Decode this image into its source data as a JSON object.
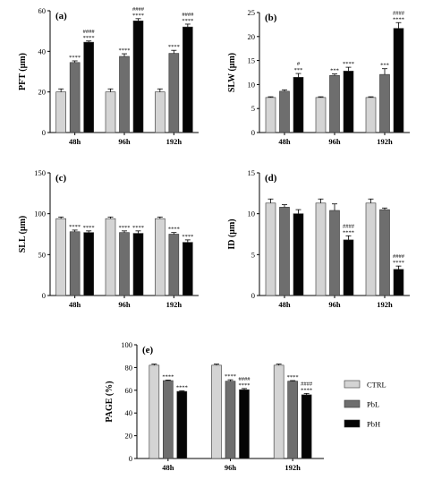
{
  "colors": {
    "CTRL": "#d4d4d4",
    "PbL": "#6e6e6e",
    "PbH": "#050505"
  },
  "legend": {
    "placement": "right",
    "entries": [
      {
        "name": "CTRL",
        "color": "#d4d4d4"
      },
      {
        "name": "PbL",
        "color": "#6e6e6e"
      },
      {
        "name": "PbH",
        "color": "#050505"
      }
    ]
  },
  "chart_data": [
    {
      "type": "bar",
      "panel": "(a)",
      "ylabel": "PFT (μm)",
      "categories": [
        "48h",
        "96h",
        "192h"
      ],
      "ylim": [
        0,
        60
      ],
      "yticks": [
        0,
        20,
        40,
        60
      ],
      "series": [
        {
          "name": "CTRL",
          "values": [
            20,
            20,
            20
          ],
          "errors": [
            1.5,
            1.5,
            1.5
          ]
        },
        {
          "name": "PbL",
          "values": [
            34.5,
            37.5,
            39
          ],
          "errors": [
            0.8,
            1.3,
            1.5
          ]
        },
        {
          "name": "PbH",
          "values": [
            44.5,
            55,
            52
          ],
          "errors": [
            0.6,
            1.1,
            1.4
          ]
        }
      ],
      "annotations": [
        [
          "",
          "****",
          "####\n****"
        ],
        [
          "",
          "****",
          "####\n****"
        ],
        [
          "",
          "****",
          "####\n****"
        ]
      ]
    },
    {
      "type": "bar",
      "panel": "(b)",
      "ylabel": "SLW (μm)",
      "categories": [
        "48h",
        "96h",
        "192h"
      ],
      "ylim": [
        0,
        25
      ],
      "yticks": [
        0,
        5,
        10,
        15,
        20,
        25
      ],
      "series": [
        {
          "name": "CTRL",
          "values": [
            7.3,
            7.3,
            7.3
          ],
          "errors": [
            0.15,
            0.15,
            0.15
          ]
        },
        {
          "name": "PbL",
          "values": [
            8.6,
            11.9,
            12.1
          ],
          "errors": [
            0.3,
            0.3,
            1.2
          ]
        },
        {
          "name": "PbH",
          "values": [
            11.5,
            12.8,
            21.7
          ],
          "errors": [
            0.8,
            0.8,
            1.2
          ]
        }
      ],
      "annotations": [
        [
          "",
          "",
          "#\n***"
        ],
        [
          "",
          "***",
          "****"
        ],
        [
          "",
          "***",
          "####\n****"
        ]
      ]
    },
    {
      "type": "bar",
      "panel": "(c)",
      "ylabel": "SLL (μm)",
      "categories": [
        "48h",
        "96h",
        "192h"
      ],
      "ylim": [
        0,
        150
      ],
      "yticks": [
        0,
        50,
        100,
        150
      ],
      "series": [
        {
          "name": "CTRL",
          "values": [
            94,
            94,
            94
          ],
          "errors": [
            2,
            2,
            2
          ]
        },
        {
          "name": "PbL",
          "values": [
            78,
            77,
            75
          ],
          "errors": [
            2,
            2,
            2
          ]
        },
        {
          "name": "PbH",
          "values": [
            77,
            76,
            65
          ],
          "errors": [
            2,
            3,
            3
          ]
        }
      ],
      "annotations": [
        [
          "",
          "****",
          "****"
        ],
        [
          "",
          "****",
          "****"
        ],
        [
          "",
          "****",
          "****"
        ]
      ]
    },
    {
      "type": "bar",
      "panel": "(d)",
      "ylabel": "ID (μm)",
      "categories": [
        "48h",
        "96h",
        "192h"
      ],
      "ylim": [
        0,
        15
      ],
      "yticks": [
        0,
        5,
        10,
        15
      ],
      "series": [
        {
          "name": "CTRL",
          "values": [
            11.3,
            11.3,
            11.3
          ],
          "errors": [
            0.5,
            0.5,
            0.5
          ]
        },
        {
          "name": "PbL",
          "values": [
            10.8,
            10.4,
            10.5
          ],
          "errors": [
            0.3,
            0.8,
            0.2
          ]
        },
        {
          "name": "PbH",
          "values": [
            10,
            6.8,
            3.2
          ],
          "errors": [
            0.5,
            0.5,
            0.4
          ]
        }
      ],
      "annotations": [
        [
          "",
          "",
          ""
        ],
        [
          "",
          "",
          "####\n****"
        ],
        [
          "",
          "",
          "####\n****"
        ]
      ]
    },
    {
      "type": "bar",
      "panel": "(e)",
      "ylabel": "PAGE (%)",
      "categories": [
        "48h",
        "96h",
        "192h"
      ],
      "ylim": [
        0,
        100
      ],
      "yticks": [
        0,
        20,
        40,
        60,
        80,
        100
      ],
      "series": [
        {
          "name": "CTRL",
          "values": [
            82,
            82,
            82
          ],
          "errors": [
            1,
            1,
            1
          ]
        },
        {
          "name": "PbL",
          "values": [
            68.5,
            68,
            68
          ],
          "errors": [
            0.5,
            1.2,
            0.5
          ]
        },
        {
          "name": "PbH",
          "values": [
            59,
            60.5,
            56
          ],
          "errors": [
            0.5,
            1,
            1.2
          ]
        }
      ],
      "annotations": [
        [
          "",
          "****",
          "****"
        ],
        [
          "",
          "****",
          "####\n****"
        ],
        [
          "",
          "****",
          "####\n****"
        ]
      ]
    }
  ]
}
